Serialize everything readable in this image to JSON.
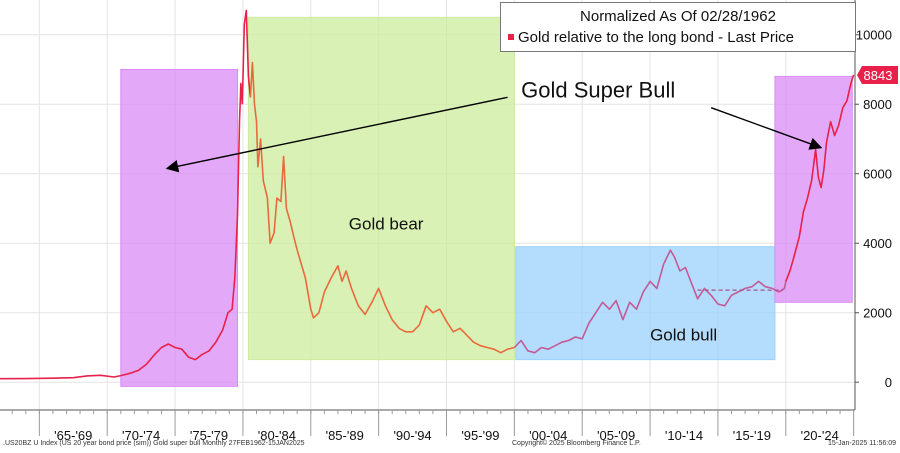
{
  "chart_data": {
    "type": "line",
    "title": "Normalized As Of 02/28/1962",
    "legend": [
      {
        "label": "Gold relative to the long bond - Last Price",
        "color": "#e8204a"
      }
    ],
    "last_value_label": "8843",
    "y_ticks": [
      0,
      2000,
      4000,
      6000,
      8000,
      10000
    ],
    "ylim": [
      -800,
      11000
    ],
    "xlim": [
      1962.1,
      2025.1
    ],
    "x_tick_labels": [
      {
        "label": "'65-'69",
        "x": 1967.5
      },
      {
        "label": "'70-'74",
        "x": 1972.5
      },
      {
        "label": "'75-'79",
        "x": 1977.5
      },
      {
        "label": "'80-'84",
        "x": 1982.5
      },
      {
        "label": "'85-'89",
        "x": 1987.5
      },
      {
        "label": "'90-'94",
        "x": 1992.5
      },
      {
        "label": "'95-'99",
        "x": 1997.5
      },
      {
        "label": "'00-'04",
        "x": 2002.5
      },
      {
        "label": "'05-'09",
        "x": 2007.5
      },
      {
        "label": "'10-'14",
        "x": 2012.5
      },
      {
        "label": "'15-'19",
        "x": 2017.5
      },
      {
        "label": "'20-'24",
        "x": 2022.5
      }
    ],
    "x_gridlines": [
      1965,
      1970,
      1975,
      1980,
      1985,
      1990,
      1995,
      2000,
      2005,
      2010,
      2015,
      2020
    ],
    "regions": [
      {
        "name": "super-bull-1970s",
        "x0": 1971.0,
        "x1": 1979.6,
        "y0": -120,
        "y1": 9000,
        "color": "#d98cf5"
      },
      {
        "name": "gold-bear",
        "x0": 1980.4,
        "x1": 2000.0,
        "y0": 650,
        "y1": 10500,
        "color": "#ccec9c"
      },
      {
        "name": "gold-bull",
        "x0": 2000.1,
        "x1": 2019.2,
        "y0": 650,
        "y1": 3900,
        "color": "#9bd0fb"
      },
      {
        "name": "super-bull-2020s",
        "x0": 2019.2,
        "x1": 2024.9,
        "y0": 2300,
        "y1": 8800,
        "color": "#d98cf5"
      }
    ],
    "annotations": [
      {
        "name": "gold-super-bull-label",
        "text": "Gold Super Bull",
        "x": 2000.5,
        "y": 8200,
        "size": 22
      },
      {
        "name": "gold-bear-label",
        "text": "Gold bear",
        "x": 1987.8,
        "y": 4400,
        "size": 17
      },
      {
        "name": "gold-bull-label",
        "text": "Gold bull",
        "x": 2010.0,
        "y": 1200,
        "size": 17
      }
    ],
    "arrows": [
      {
        "name": "arrow-to-1970s",
        "from": [
          1999.5,
          8200
        ],
        "to": [
          1974.4,
          6150
        ]
      },
      {
        "name": "arrow-to-2020s",
        "from": [
          2014.5,
          7900
        ],
        "to": [
          2022.6,
          6750
        ]
      }
    ],
    "dashed_average": {
      "x0": 2013.5,
      "x1": 2019.8,
      "y": 2650
    },
    "series": [
      {
        "name": "Gold relative to the long bond",
        "segments": [
          {
            "color": "#e8204a",
            "points": [
              [
                1962.1,
                100
              ],
              [
                1964,
                105
              ],
              [
                1966,
                115
              ],
              [
                1967.5,
                130
              ],
              [
                1968.5,
                180
              ],
              [
                1969.5,
                200
              ],
              [
                1970.5,
                150
              ],
              [
                1971,
                190
              ],
              [
                1971.7,
                260
              ],
              [
                1972.3,
                340
              ],
              [
                1972.9,
                520
              ],
              [
                1973.5,
                800
              ],
              [
                1974,
                1000
              ],
              [
                1974.5,
                1100
              ],
              [
                1975,
                1000
              ],
              [
                1975.5,
                950
              ],
              [
                1976,
                720
              ],
              [
                1976.5,
                650
              ],
              [
                1977,
                800
              ],
              [
                1977.5,
                900
              ],
              [
                1978,
                1150
              ],
              [
                1978.5,
                1500
              ],
              [
                1978.9,
                2000
              ],
              [
                1979.2,
                2100
              ],
              [
                1979.4,
                3000
              ],
              [
                1979.6,
                4800
              ],
              [
                1979.75,
                7500
              ],
              [
                1979.85,
                8600
              ],
              [
                1979.95,
                8000
              ]
            ]
          },
          {
            "color": "#e8204a",
            "points": [
              [
                1979.95,
                8000
              ],
              [
                1980.1,
                10300
              ],
              [
                1980.25,
                10700
              ],
              [
                1980.4,
                8800
              ],
              [
                1980.55,
                8200
              ]
            ]
          },
          {
            "color": "#e96a3c",
            "points": [
              [
                1980.55,
                8200
              ],
              [
                1980.7,
                9200
              ],
              [
                1980.85,
                8000
              ],
              [
                1981.0,
                7500
              ],
              [
                1981.1,
                6200
              ],
              [
                1981.3,
                7000
              ],
              [
                1981.5,
                5800
              ],
              [
                1981.8,
                5300
              ],
              [
                1982.0,
                4000
              ],
              [
                1982.3,
                4300
              ],
              [
                1982.5,
                5300
              ],
              [
                1982.8,
                5200
              ],
              [
                1983.0,
                6500
              ],
              [
                1983.2,
                5000
              ],
              [
                1983.5,
                4600
              ],
              [
                1983.8,
                4100
              ],
              [
                1984.0,
                3800
              ],
              [
                1984.3,
                3400
              ],
              [
                1984.6,
                3000
              ],
              [
                1985.0,
                2100
              ],
              [
                1985.2,
                1850
              ],
              [
                1985.6,
                2000
              ],
              [
                1986.0,
                2600
              ],
              [
                1986.5,
                3000
              ],
              [
                1987.0,
                3350
              ],
              [
                1987.3,
                2900
              ],
              [
                1987.6,
                3200
              ],
              [
                1988.0,
                2700
              ],
              [
                1988.5,
                2200
              ],
              [
                1989.0,
                1950
              ],
              [
                1989.5,
                2300
              ],
              [
                1990.0,
                2700
              ],
              [
                1990.5,
                2200
              ],
              [
                1991.0,
                1800
              ],
              [
                1991.5,
                1550
              ],
              [
                1992.0,
                1450
              ],
              [
                1992.5,
                1450
              ],
              [
                1993.0,
                1650
              ],
              [
                1993.5,
                2200
              ],
              [
                1994.0,
                2000
              ],
              [
                1994.5,
                2100
              ],
              [
                1995.0,
                1750
              ],
              [
                1995.5,
                1450
              ],
              [
                1996.0,
                1550
              ],
              [
                1996.5,
                1350
              ],
              [
                1997.0,
                1150
              ],
              [
                1997.5,
                1050
              ],
              [
                1998.0,
                1000
              ],
              [
                1998.5,
                950
              ],
              [
                1999.0,
                850
              ],
              [
                1999.5,
                950
              ],
              [
                2000.0,
                1000
              ]
            ]
          },
          {
            "color": "#c45a96",
            "points": [
              [
                2000.0,
                1000
              ],
              [
                2000.5,
                1200
              ],
              [
                2001.0,
                900
              ],
              [
                2001.5,
                850
              ],
              [
                2002.0,
                1000
              ],
              [
                2002.5,
                950
              ],
              [
                2003.0,
                1050
              ],
              [
                2003.5,
                1150
              ],
              [
                2004.0,
                1200
              ],
              [
                2004.5,
                1300
              ],
              [
                2005.0,
                1250
              ],
              [
                2005.5,
                1700
              ],
              [
                2006.0,
                2000
              ],
              [
                2006.5,
                2300
              ],
              [
                2007.0,
                2100
              ],
              [
                2007.5,
                2350
              ],
              [
                2008.0,
                1800
              ],
              [
                2008.5,
                2300
              ],
              [
                2009.0,
                2100
              ],
              [
                2009.5,
                2600
              ],
              [
                2010.0,
                2900
              ],
              [
                2010.5,
                2700
              ],
              [
                2011.0,
                3400
              ],
              [
                2011.5,
                3800
              ],
              [
                2011.8,
                3600
              ],
              [
                2012.2,
                3200
              ],
              [
                2012.6,
                3300
              ],
              [
                2013.0,
                2900
              ],
              [
                2013.5,
                2400
              ],
              [
                2014.0,
                2700
              ],
              [
                2014.5,
                2500
              ],
              [
                2015.0,
                2250
              ],
              [
                2015.5,
                2200
              ],
              [
                2016.0,
                2500
              ],
              [
                2016.5,
                2600
              ],
              [
                2017.0,
                2700
              ],
              [
                2017.5,
                2750
              ],
              [
                2018.0,
                2900
              ],
              [
                2018.5,
                2750
              ],
              [
                2019.0,
                2700
              ],
              [
                2019.5,
                2600
              ],
              [
                2019.9,
                2700
              ],
              [
                2020.0,
                2900
              ]
            ]
          },
          {
            "color": "#e8204a",
            "points": [
              [
                2020.0,
                2900
              ],
              [
                2020.3,
                3200
              ],
              [
                2020.6,
                3600
              ],
              [
                2021.0,
                4200
              ],
              [
                2021.3,
                4900
              ],
              [
                2021.6,
                5300
              ],
              [
                2021.9,
                5800
              ],
              [
                2022.2,
                6700
              ],
              [
                2022.4,
                5900
              ],
              [
                2022.6,
                5600
              ],
              [
                2022.8,
                6100
              ],
              [
                2023.0,
                6900
              ],
              [
                2023.3,
                7500
              ],
              [
                2023.6,
                7100
              ],
              [
                2023.9,
                7400
              ],
              [
                2024.2,
                7900
              ],
              [
                2024.5,
                8100
              ],
              [
                2024.8,
                8600
              ],
              [
                2025.0,
                8843
              ]
            ]
          }
        ]
      }
    ]
  },
  "footer": {
    "left": ".US20BZ U Index (US 20 year bond price (sim)) Gold super bull  Monthly 27FEB1962-15JAN2025",
    "center": "Copyright© 2025 Bloomberg Finance L.P.",
    "right": "15-Jan-2025 11:56:09"
  }
}
